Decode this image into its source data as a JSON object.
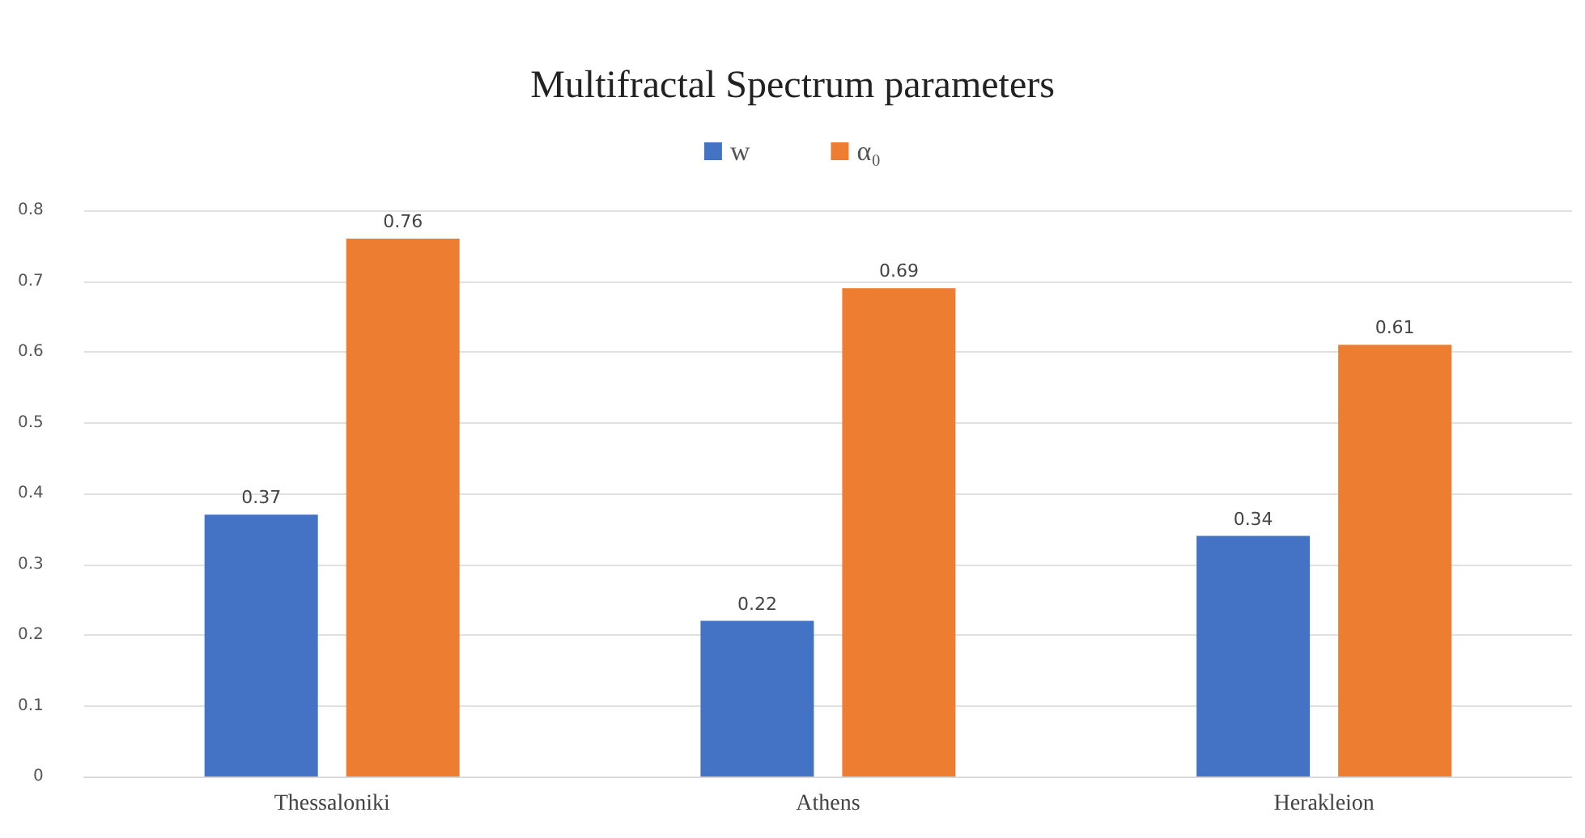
{
  "chart_data": {
    "type": "bar",
    "title": "Multifractal Spectrum parameters",
    "categories": [
      "Thessaloniki",
      "Athens",
      "Herakleion"
    ],
    "series": [
      {
        "name": "w",
        "color": "#4472c4",
        "values": [
          0.37,
          0.22,
          0.34
        ]
      },
      {
        "name": "α₀",
        "color": "#ed7d31",
        "values": [
          0.76,
          0.69,
          0.61
        ]
      }
    ],
    "ylim": [
      0,
      0.8
    ],
    "yticks": [
      0,
      0.1,
      0.2,
      0.3,
      0.4,
      0.5,
      0.6,
      0.7,
      0.8
    ],
    "grid": "y",
    "legend": "top",
    "data_labels": true
  }
}
